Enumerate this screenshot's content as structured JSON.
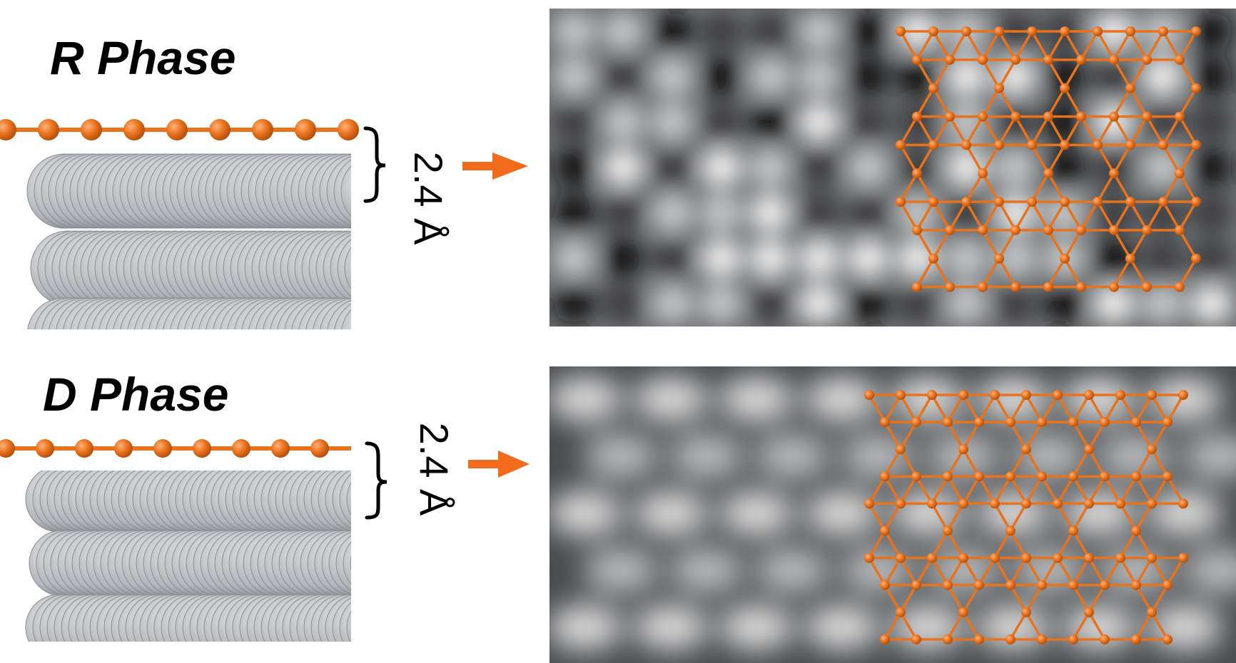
{
  "phases": [
    {
      "label": "R Phase",
      "spacing": "2.4 Å"
    },
    {
      "label": "D Phase",
      "spacing": "2.4 Å"
    }
  ],
  "colors": {
    "boron_atom": "#e8731c",
    "boron_bond": "#e8731c",
    "substrate_atom": "#c9cbce",
    "arrow": "#f26b1d",
    "text": "#000000"
  },
  "icons": {
    "transition_arrow": "right-arrow-icon",
    "spacing_brace": "curly-brace-icon"
  }
}
